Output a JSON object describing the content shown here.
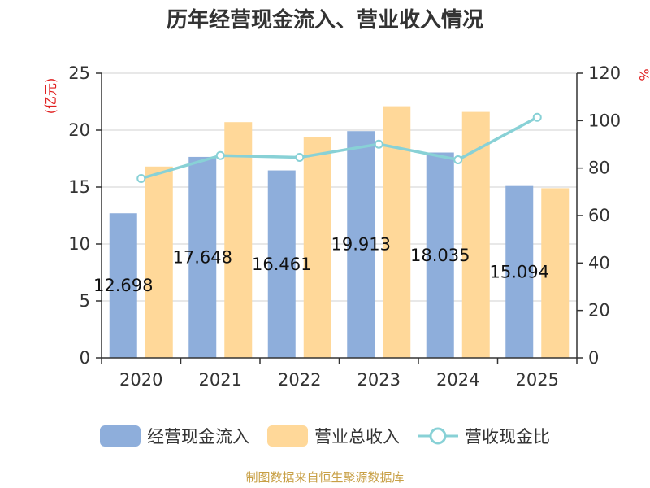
{
  "chart_data": {
    "type": "bar",
    "title": "历年经营现金流入、营业收入情况",
    "categories": [
      "2020",
      "2021",
      "2022",
      "2023",
      "2024",
      "2025"
    ],
    "series": [
      {
        "name": "经营现金流入",
        "type": "bar",
        "axis": "left",
        "color": "#8eaedb",
        "values": [
          12.698,
          17.648,
          16.461,
          19.913,
          18.035,
          15.094
        ],
        "labels": [
          "12.698",
          "17.648",
          "16.461",
          "19.913",
          "18.035",
          "15.094"
        ]
      },
      {
        "name": "营业总收入",
        "type": "bar",
        "axis": "left",
        "color": "#ffd899",
        "values": [
          16.8,
          20.7,
          19.4,
          22.1,
          21.6,
          14.9
        ]
      },
      {
        "name": "营收现金比",
        "type": "line",
        "axis": "right",
        "color": "#88d1d6",
        "values": [
          75.6,
          85.3,
          84.5,
          90.1,
          83.5,
          101.4
        ]
      }
    ],
    "y_left": {
      "label": "(亿元)",
      "ylim": [
        0,
        25
      ],
      "ticks": [
        "0",
        "5",
        "10",
        "15",
        "20",
        "25"
      ]
    },
    "y_right": {
      "label": "%",
      "ylim": [
        0,
        120
      ],
      "ticks": [
        "0",
        "20",
        "40",
        "60",
        "80",
        "100",
        "120"
      ]
    },
    "grid": true,
    "legend_position": "bottom"
  },
  "source": "制图数据来自恒生聚源数据库"
}
